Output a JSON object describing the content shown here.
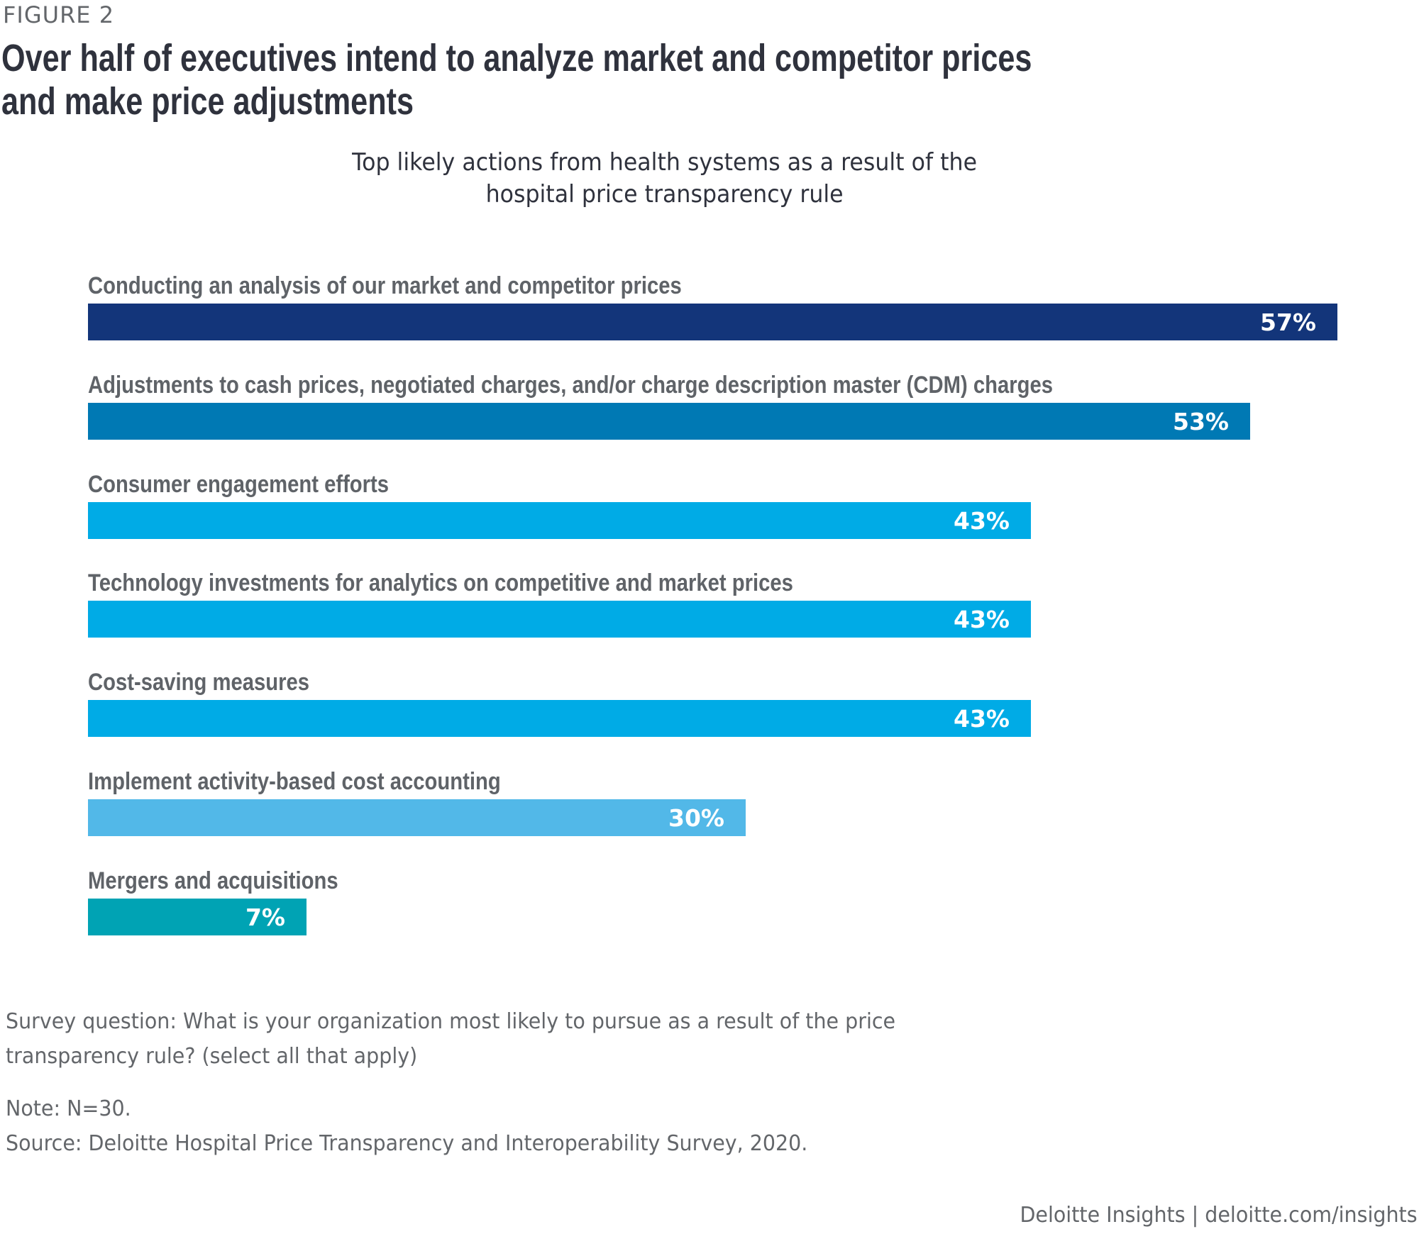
{
  "figure_label": "FIGURE 2",
  "title_lines": [
    "Over half of executives intend to analyze market and competitor prices",
    "and make price adjustments"
  ],
  "subtitle_lines": [
    "Top likely actions from health systems as a result of the",
    "hospital price transparency rule"
  ],
  "chart_data": {
    "type": "bar",
    "orientation": "horizontal",
    "title": "Top likely actions from health systems as a result of the hospital price transparency rule",
    "xlabel": "",
    "ylabel": "",
    "unit": "%",
    "xlim": [
      0,
      57
    ],
    "grid": false,
    "categories": [
      "Conducting an analysis of our market and competitor prices",
      "Adjustments to cash prices, negotiated charges, and/or charge description master (CDM) charges",
      "Consumer engagement efforts",
      "Technology investments for analytics on competitive and market prices",
      "Cost-saving measures",
      "Implement activity-based cost accounting",
      "Mergers and acquisitions"
    ],
    "values": [
      57,
      53,
      43,
      43,
      43,
      30,
      7
    ],
    "value_labels": [
      "57%",
      "53%",
      "43%",
      "43%",
      "43%",
      "30%",
      "7%"
    ],
    "colors": [
      "#13357a",
      "#0079b4",
      "#00abe6",
      "#00abe6",
      "#00abe6",
      "#52b8e8",
      "#00a3b4"
    ]
  },
  "footnotes": {
    "survey_question_lines": [
      "Survey question: What is your organization most likely to pursue as a result of the price",
      "transparency rule? (select all that apply)"
    ],
    "note": "Note: N=30.",
    "source": "Source: Deloitte Hospital Price Transparency and Interoperability Survey, 2020."
  },
  "credit": "Deloitte Insights | deloitte.com/insights"
}
